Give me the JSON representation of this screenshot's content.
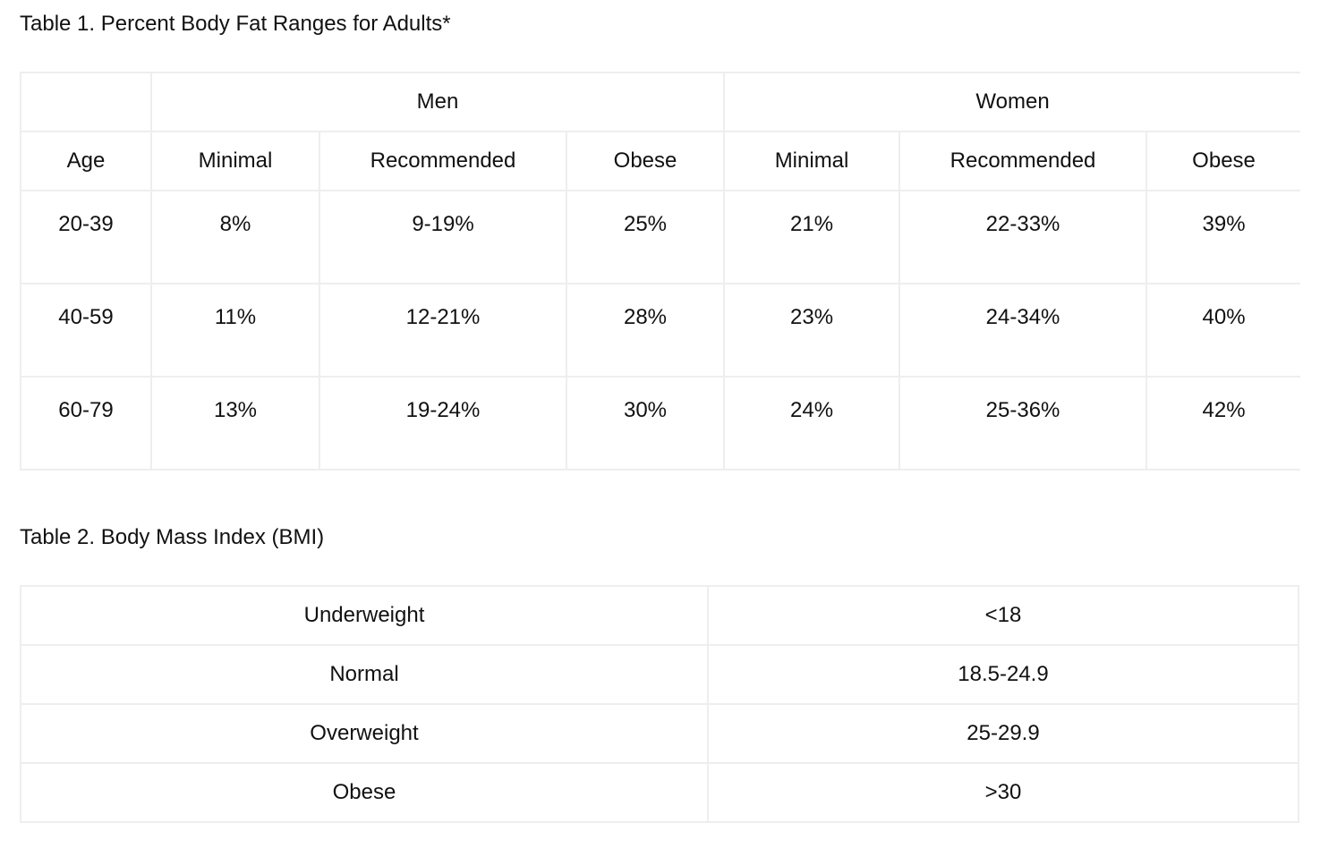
{
  "table1": {
    "caption": "Table 1. Percent Body Fat Ranges for Adults*",
    "groups": [
      "Men",
      "Women"
    ],
    "columns": [
      "Age",
      "Minimal",
      "Recommended",
      "Obese",
      "Minimal",
      "Recommended",
      "Obese"
    ],
    "rows": [
      [
        "20-39",
        "8%",
        "9-19%",
        "25%",
        "21%",
        "22-33%",
        "39%"
      ],
      [
        "40-59",
        "11%",
        "12-21%",
        "28%",
        "23%",
        "24-34%",
        "40%"
      ],
      [
        "60-79",
        "13%",
        "19-24%",
        "30%",
        "24%",
        "25-36%",
        "42%"
      ]
    ]
  },
  "table2": {
    "caption": "Table 2. Body Mass Index (BMI)",
    "rows": [
      [
        "Underweight",
        "<18"
      ],
      [
        "Normal",
        "18.5-24.9"
      ],
      [
        "Overweight",
        "25-29.9"
      ],
      [
        "Obese",
        ">30"
      ]
    ]
  }
}
